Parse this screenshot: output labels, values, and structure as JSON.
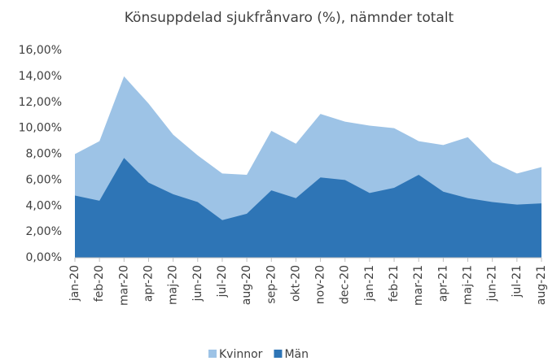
{
  "chart_data": {
    "type": "area",
    "title": "Könsuppdelad sjukfrånvaro (%), nämnder totalt",
    "categories": [
      "jan-20",
      "feb-20",
      "mar-20",
      "apr-20",
      "maj-20",
      "jun-20",
      "jul-20",
      "aug-20",
      "sep-20",
      "okt-20",
      "nov-20",
      "dec-20",
      "jan-21",
      "feb-21",
      "mar-21",
      "apr-21",
      "maj-21",
      "jun-21",
      "jul-21",
      "aug-21"
    ],
    "series": [
      {
        "name": "Kvinnor",
        "color": "#9dc3e6",
        "values": [
          8.0,
          9.0,
          14.0,
          11.9,
          9.5,
          7.9,
          6.5,
          6.4,
          9.8,
          8.8,
          11.1,
          10.5,
          10.2,
          10.0,
          9.0,
          8.7,
          9.3,
          7.4,
          6.5,
          7.0
        ]
      },
      {
        "name": "Män",
        "color": "#2e75b6",
        "values": [
          4.8,
          4.4,
          7.7,
          5.8,
          4.9,
          4.3,
          2.9,
          3.4,
          5.2,
          4.6,
          6.2,
          6.0,
          5.0,
          5.4,
          6.4,
          5.1,
          4.6,
          4.3,
          4.1,
          4.2
        ]
      }
    ],
    "ylim": [
      0,
      16
    ],
    "yticks": [
      {
        "value": 0,
        "label": "0,00%"
      },
      {
        "value": 2,
        "label": "2,00%"
      },
      {
        "value": 4,
        "label": "4,00%"
      },
      {
        "value": 6,
        "label": "6,00%"
      },
      {
        "value": 8,
        "label": "8,00%"
      },
      {
        "value": 10,
        "label": "10,00%"
      },
      {
        "value": 12,
        "label": "12,00%"
      },
      {
        "value": 14,
        "label": "14,00%"
      },
      {
        "value": 16,
        "label": "16,00%"
      }
    ],
    "grid": false,
    "legend": "bottom"
  }
}
